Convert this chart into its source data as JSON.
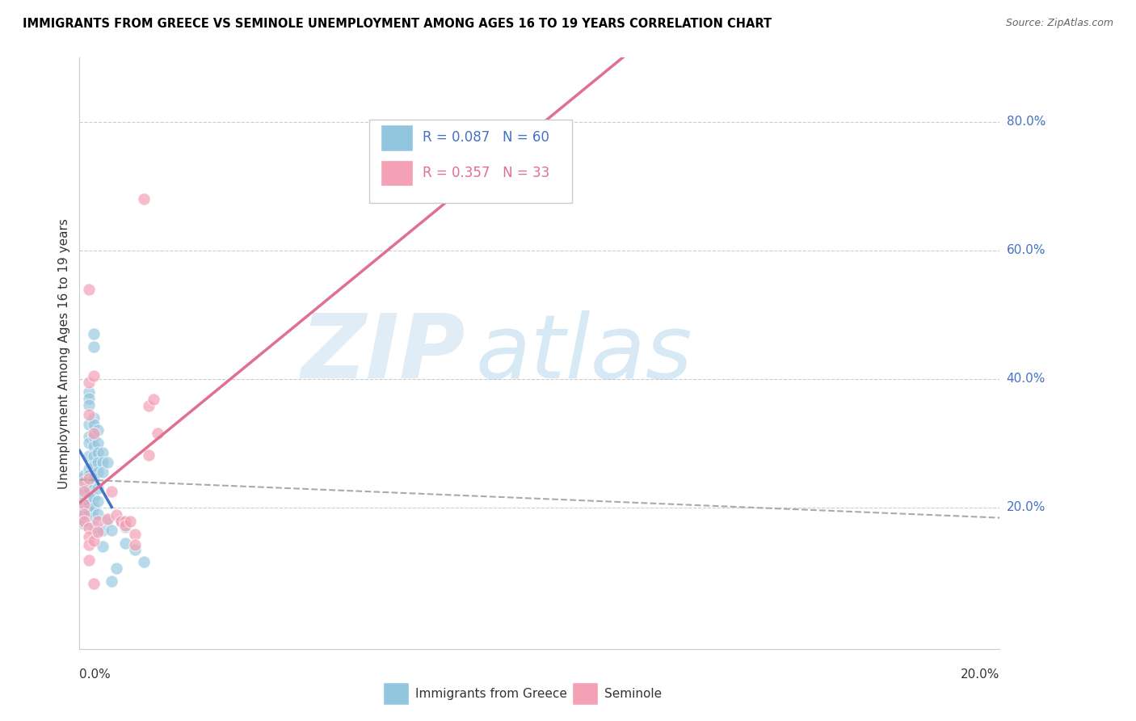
{
  "title": "IMMIGRANTS FROM GREECE VS SEMINOLE UNEMPLOYMENT AMONG AGES 16 TO 19 YEARS CORRELATION CHART",
  "source": "Source: ZipAtlas.com",
  "ylabel": "Unemployment Among Ages 16 to 19 years",
  "legend1_R": "0.087",
  "legend1_N": "60",
  "legend2_R": "0.357",
  "legend2_N": "33",
  "color_blue": "#92c5de",
  "color_pink": "#f4a0b5",
  "color_blue_line": "#4472c4",
  "color_pink_line": "#e07090",
  "color_blue_text": "#4472c4",
  "color_pink_text": "#e07090",
  "watermark_ZIP": "ZIP",
  "watermark_atlas": "atlas",
  "xlim": [
    0.0,
    0.2
  ],
  "ylim": [
    -0.02,
    0.9
  ],
  "xticklabels": [
    "0.0%",
    "20.0%"
  ],
  "right_ytick_vals": [
    0.2,
    0.4,
    0.6,
    0.8
  ],
  "right_ytick_labels": [
    "20.0%",
    "40.0%",
    "60.0%",
    "80.0%"
  ],
  "blue_scatter": [
    [
      0.0005,
      0.245
    ],
    [
      0.001,
      0.2
    ],
    [
      0.001,
      0.185
    ],
    [
      0.001,
      0.22
    ],
    [
      0.001,
      0.175
    ],
    [
      0.001,
      0.25
    ],
    [
      0.001,
      0.23
    ],
    [
      0.001,
      0.21
    ],
    [
      0.001,
      0.195
    ],
    [
      0.002,
      0.38
    ],
    [
      0.002,
      0.37
    ],
    [
      0.002,
      0.36
    ],
    [
      0.002,
      0.33
    ],
    [
      0.002,
      0.31
    ],
    [
      0.002,
      0.3
    ],
    [
      0.002,
      0.28
    ],
    [
      0.002,
      0.26
    ],
    [
      0.002,
      0.25
    ],
    [
      0.002,
      0.24
    ],
    [
      0.002,
      0.23
    ],
    [
      0.002,
      0.215
    ],
    [
      0.002,
      0.205
    ],
    [
      0.002,
      0.195
    ],
    [
      0.003,
      0.47
    ],
    [
      0.003,
      0.45
    ],
    [
      0.003,
      0.34
    ],
    [
      0.003,
      0.33
    ],
    [
      0.003,
      0.31
    ],
    [
      0.003,
      0.295
    ],
    [
      0.003,
      0.28
    ],
    [
      0.003,
      0.265
    ],
    [
      0.003,
      0.245
    ],
    [
      0.003,
      0.215
    ],
    [
      0.003,
      0.2
    ],
    [
      0.003,
      0.185
    ],
    [
      0.003,
      0.17
    ],
    [
      0.004,
      0.32
    ],
    [
      0.004,
      0.3
    ],
    [
      0.004,
      0.285
    ],
    [
      0.004,
      0.27
    ],
    [
      0.004,
      0.255
    ],
    [
      0.004,
      0.23
    ],
    [
      0.004,
      0.21
    ],
    [
      0.004,
      0.19
    ],
    [
      0.004,
      0.165
    ],
    [
      0.005,
      0.285
    ],
    [
      0.005,
      0.27
    ],
    [
      0.005,
      0.255
    ],
    [
      0.005,
      0.165
    ],
    [
      0.005,
      0.14
    ],
    [
      0.006,
      0.27
    ],
    [
      0.006,
      0.18
    ],
    [
      0.007,
      0.165
    ],
    [
      0.007,
      0.085
    ],
    [
      0.008,
      0.105
    ],
    [
      0.009,
      0.18
    ],
    [
      0.01,
      0.17
    ],
    [
      0.01,
      0.145
    ],
    [
      0.012,
      0.135
    ],
    [
      0.014,
      0.115
    ]
  ],
  "pink_scatter": [
    [
      0.001,
      0.24
    ],
    [
      0.001,
      0.225
    ],
    [
      0.001,
      0.205
    ],
    [
      0.001,
      0.19
    ],
    [
      0.001,
      0.178
    ],
    [
      0.002,
      0.54
    ],
    [
      0.002,
      0.395
    ],
    [
      0.002,
      0.345
    ],
    [
      0.002,
      0.245
    ],
    [
      0.002,
      0.168
    ],
    [
      0.002,
      0.155
    ],
    [
      0.002,
      0.142
    ],
    [
      0.002,
      0.118
    ],
    [
      0.003,
      0.405
    ],
    [
      0.003,
      0.315
    ],
    [
      0.003,
      0.148
    ],
    [
      0.003,
      0.082
    ],
    [
      0.004,
      0.178
    ],
    [
      0.004,
      0.162
    ],
    [
      0.006,
      0.182
    ],
    [
      0.007,
      0.225
    ],
    [
      0.008,
      0.188
    ],
    [
      0.009,
      0.178
    ],
    [
      0.01,
      0.178
    ],
    [
      0.01,
      0.172
    ],
    [
      0.011,
      0.178
    ],
    [
      0.012,
      0.158
    ],
    [
      0.012,
      0.142
    ],
    [
      0.014,
      0.68
    ],
    [
      0.015,
      0.358
    ],
    [
      0.015,
      0.282
    ],
    [
      0.016,
      0.368
    ],
    [
      0.017,
      0.315
    ]
  ],
  "blue_line_x": [
    0.0,
    0.007
  ],
  "pink_line_x": [
    0.0,
    0.2
  ],
  "dashed_line_x": [
    0.0,
    0.2
  ]
}
